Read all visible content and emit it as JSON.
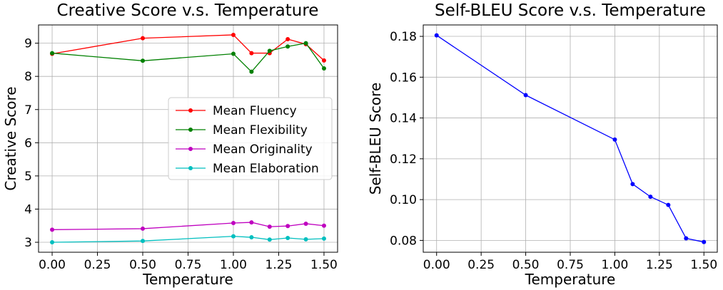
{
  "chart_data": [
    {
      "type": "line",
      "title": "Creative Score v.s. Temperature",
      "xlabel": "Temperature",
      "ylabel": "Creative Score",
      "x": [
        0.0,
        0.5,
        1.0,
        1.1,
        1.2,
        1.3,
        1.4,
        1.5
      ],
      "xlim": [
        -0.075,
        1.575
      ],
      "ylim": [
        2.7,
        9.55
      ],
      "xticks": [
        "0.00",
        "0.25",
        "0.50",
        "0.75",
        "1.00",
        "1.25",
        "1.50"
      ],
      "yticks": [
        "3",
        "4",
        "5",
        "6",
        "7",
        "8",
        "9"
      ],
      "grid": true,
      "legend_position": "center-right",
      "series": [
        {
          "name": "Mean Fluency",
          "color": "#ff0000",
          "values": [
            8.68,
            9.15,
            9.25,
            8.7,
            8.7,
            9.12,
            8.97,
            8.48
          ]
        },
        {
          "name": "Mean Flexibility",
          "color": "#008000",
          "values": [
            8.7,
            8.47,
            8.68,
            8.14,
            8.77,
            8.9,
            9.0,
            8.24
          ]
        },
        {
          "name": "Mean Originality",
          "color": "#bf00bf",
          "values": [
            3.38,
            3.41,
            3.58,
            3.6,
            3.47,
            3.49,
            3.56,
            3.5
          ]
        },
        {
          "name": "Mean Elaboration",
          "color": "#00bfbf",
          "values": [
            3.0,
            3.04,
            3.18,
            3.15,
            3.08,
            3.13,
            3.09,
            3.11
          ]
        }
      ]
    },
    {
      "type": "line",
      "title": "Self-BLEU Score v.s. Temperature",
      "xlabel": "Temperature",
      "ylabel": "Self-BLEU Score",
      "x": [
        0.0,
        0.5,
        1.0,
        1.1,
        1.2,
        1.3,
        1.4,
        1.5
      ],
      "xlim": [
        -0.075,
        1.575
      ],
      "ylim": [
        0.0742,
        0.1856
      ],
      "xticks": [
        "0.00",
        "0.25",
        "0.50",
        "0.75",
        "1.00",
        "1.25",
        "1.50"
      ],
      "yticks": [
        "0.08",
        "0.10",
        "0.12",
        "0.14",
        "0.16",
        "0.18"
      ],
      "grid": true,
      "legend_position": "none",
      "series": [
        {
          "name": "",
          "color": "#0000ff",
          "values": [
            0.1805,
            0.1512,
            0.1294,
            0.1076,
            0.1014,
            0.0974,
            0.081,
            0.0792
          ]
        }
      ]
    }
  ]
}
